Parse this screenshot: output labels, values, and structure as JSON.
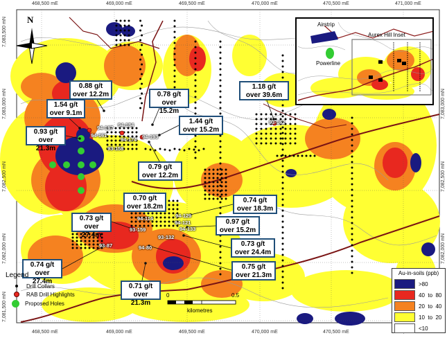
{
  "grid": {
    "x_ticks": [
      "468,500 mE",
      "469,000 mE",
      "469,500 mE",
      "470,000 mE",
      "470,500 mE",
      "471,000 mE"
    ],
    "y_ticks": [
      "7,083,500 mN",
      "7,083,000 mN",
      "7,082,500 mN",
      "7,082,000 mN",
      "7,081,500 mN"
    ]
  },
  "north_label": "N",
  "intercepts": [
    {
      "grade": "0.88 g/t",
      "over": "over 12.2m"
    },
    {
      "grade": "0.78 g/t",
      "over": "over 15.2m"
    },
    {
      "grade": "1.18 g/t",
      "over": "over 39.6m"
    },
    {
      "grade": "1.54 g/t",
      "over": "over 9.1m"
    },
    {
      "grade": "1.44 g/t",
      "over": "over 15.2m"
    },
    {
      "grade": "0.93 g/t",
      "over": "over 21.3m"
    },
    {
      "grade": "0.79 g/t",
      "over": "over 12.2m"
    },
    {
      "grade": "0.70 g/t",
      "over": "over 18.2m"
    },
    {
      "grade": "0.74 g/t",
      "over": "over 18.3m"
    },
    {
      "grade": "0.73 g/t",
      "over": "over 27.4m"
    },
    {
      "grade": "0.97 g/t",
      "over": "over 15.2m"
    },
    {
      "grade": "0.73 g/t",
      "over": "over 24.4m"
    },
    {
      "grade": "0.74 g/t",
      "over": "over 27.4m"
    },
    {
      "grade": "0.75 g/t",
      "over": "over 21.3m"
    },
    {
      "grade": "0.71 g/t",
      "over": "over 21.3m"
    }
  ],
  "holes": [
    "94-167",
    "94-161",
    "94-184",
    "94-174",
    "94-193",
    "93-158",
    "93-162",
    "94-129",
    "94-114",
    "94-121",
    "93-159",
    "94-133",
    "93-132",
    "94-80",
    "93-87"
  ],
  "legend": {
    "title": "Legend",
    "items": [
      "Drill Collars",
      "RAB Drill Highlights",
      "Proposed Holes"
    ]
  },
  "scale": {
    "start": "0",
    "mid": "0.5",
    "unit": "kilometres"
  },
  "rank": {
    "title": "Au-in-soils (ppb)",
    "classes": [
      {
        "label": ">80",
        "color": "#1a1a80"
      },
      {
        "label": "40  to  80",
        "color": "#e8281f"
      },
      {
        "label": "20  to  40",
        "color": "#f58220"
      },
      {
        "label": "10  to  20",
        "color": "#ffff33"
      },
      {
        "label": "<10",
        "color": "#ffffff"
      }
    ]
  },
  "inset": {
    "airstrip": "Airstrip",
    "title": "Aurex Hill Inset",
    "powerline": "Powerline"
  }
}
